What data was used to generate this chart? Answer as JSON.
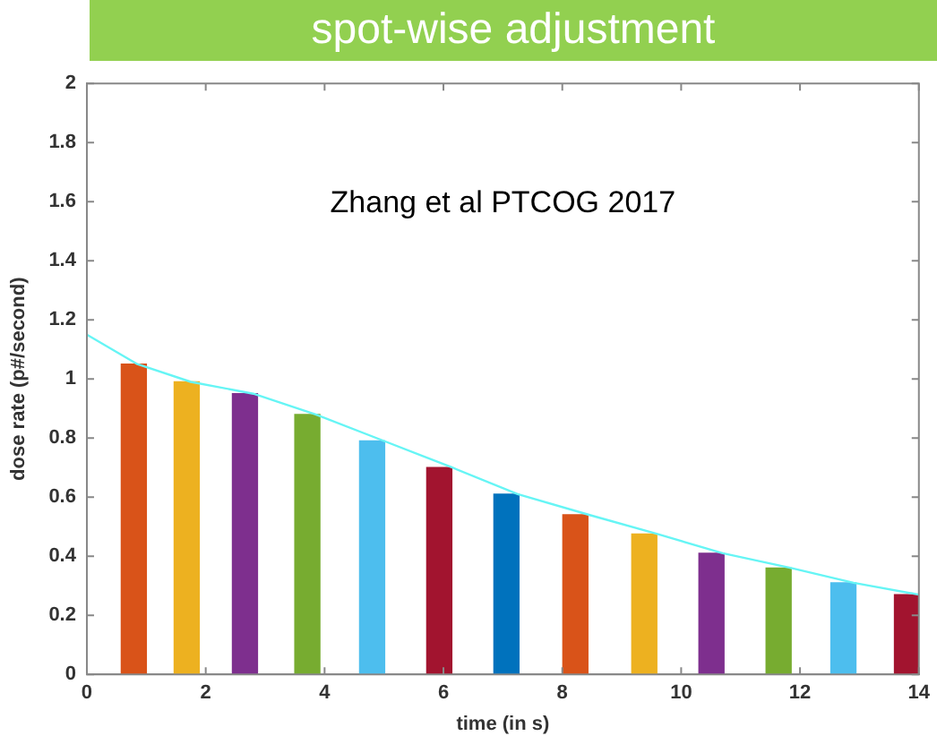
{
  "chart_data": {
    "type": "bar",
    "title": "spot-wise adjustment",
    "xlabel": "time (in s)",
    "ylabel": "dose rate (p#/second)",
    "annotations": [
      "Zhang et al PTCOG 2017"
    ],
    "series": [
      {
        "x": [
          0.79,
          1.68,
          2.66,
          3.71,
          4.8,
          5.93,
          7.06,
          8.22,
          9.38,
          10.51,
          11.64,
          12.73,
          13.8
        ],
        "values": [
          1.05,
          0.99,
          0.95,
          0.88,
          0.79,
          0.7,
          0.61,
          0.54,
          0.475,
          0.41,
          0.36,
          0.31,
          0.27
        ],
        "colors": [
          "#d95319",
          "#edb120",
          "#7e2f8e",
          "#77ac30",
          "#4dbeee",
          "#a2142f",
          "#0072bd",
          "#d95319",
          "#edb120",
          "#7e2f8e",
          "#77ac30",
          "#4dbeee",
          "#a2142f"
        ]
      },
      {
        "type": "line",
        "color": "#66f5f5",
        "x": [
          0,
          0.85,
          1.75,
          2.8,
          3.85,
          5.0,
          6.15,
          7.25,
          8.45,
          9.6,
          10.7,
          11.85,
          12.9,
          14
        ],
        "values": [
          1.15,
          1.05,
          0.99,
          0.95,
          0.88,
          0.79,
          0.7,
          0.61,
          0.54,
          0.475,
          0.41,
          0.36,
          0.31,
          0.27
        ]
      }
    ],
    "xlim": [
      0,
      14
    ],
    "xticks": [
      0,
      2,
      4,
      6,
      8,
      10,
      12,
      14
    ],
    "ylim": [
      0,
      2
    ],
    "yticks": [
      0,
      0.2,
      0.4,
      0.6,
      0.8,
      1,
      1.2,
      1.4,
      1.6,
      1.8,
      2
    ],
    "grid": false,
    "legend": false,
    "marker": "none",
    "line_style": "solid"
  }
}
